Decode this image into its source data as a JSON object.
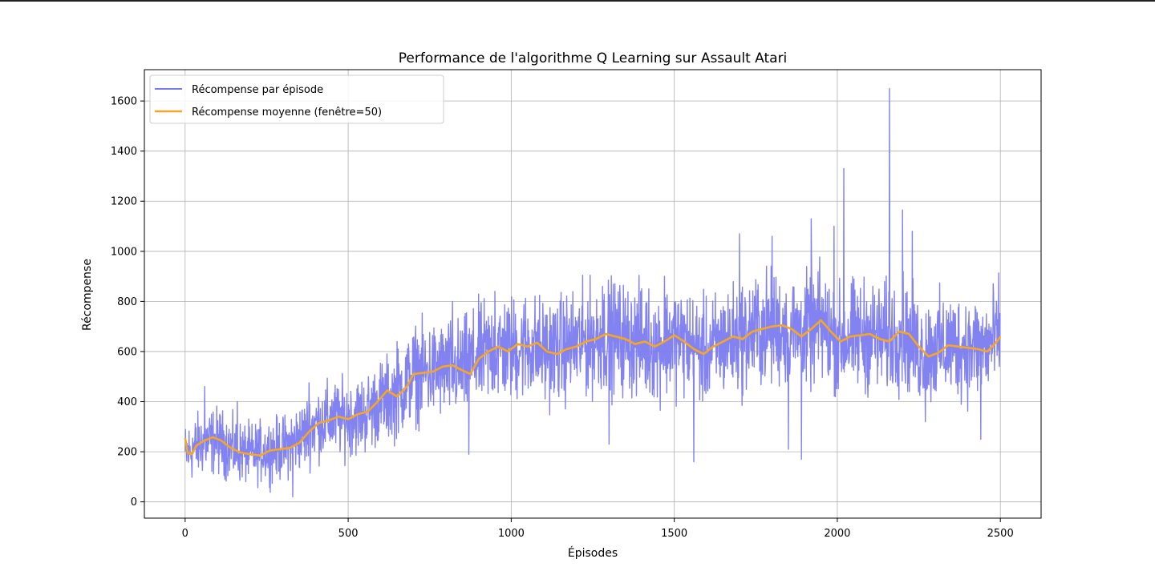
{
  "chart_data": {
    "type": "line",
    "title": "Performance de l'algorithme Q Learning sur Assault Atari",
    "xlabel": "Épisodes",
    "ylabel": "Récompense",
    "xlim": [
      -125,
      2625
    ],
    "ylim": [
      -65,
      1725
    ],
    "xticks": [
      0,
      500,
      1000,
      1500,
      2000,
      2500
    ],
    "yticks": [
      0,
      200,
      400,
      600,
      800,
      1000,
      1200,
      1400,
      1600
    ],
    "grid": true,
    "legend_position": "top-left",
    "series": [
      {
        "name": "Récompense par épisode",
        "color": "#7b7bf0",
        "episodes": 2500,
        "noisy": true,
        "trend": [
          [
            0,
            190
          ],
          [
            50,
            235
          ],
          [
            100,
            245
          ],
          [
            150,
            205
          ],
          [
            200,
            190
          ],
          [
            250,
            205
          ],
          [
            300,
            215
          ],
          [
            350,
            255
          ],
          [
            400,
            310
          ],
          [
            450,
            330
          ],
          [
            500,
            335
          ],
          [
            550,
            350
          ],
          [
            600,
            400
          ],
          [
            650,
            425
          ],
          [
            700,
            510
          ],
          [
            750,
            520
          ],
          [
            800,
            530
          ],
          [
            850,
            530
          ],
          [
            900,
            580
          ],
          [
            950,
            610
          ],
          [
            1000,
            610
          ],
          [
            1050,
            625
          ],
          [
            1100,
            600
          ],
          [
            1150,
            610
          ],
          [
            1200,
            630
          ],
          [
            1250,
            650
          ],
          [
            1300,
            665
          ],
          [
            1350,
            650
          ],
          [
            1400,
            640
          ],
          [
            1450,
            625
          ],
          [
            1500,
            655
          ],
          [
            1550,
            625
          ],
          [
            1600,
            590
          ],
          [
            1650,
            640
          ],
          [
            1700,
            650
          ],
          [
            1750,
            680
          ],
          [
            1800,
            695
          ],
          [
            1850,
            690
          ],
          [
            1900,
            670
          ],
          [
            1950,
            710
          ],
          [
            2000,
            640
          ],
          [
            2050,
            660
          ],
          [
            2100,
            665
          ],
          [
            2150,
            650
          ],
          [
            2200,
            675
          ],
          [
            2250,
            600
          ],
          [
            2300,
            610
          ],
          [
            2350,
            625
          ],
          [
            2400,
            615
          ],
          [
            2450,
            615
          ],
          [
            2500,
            660
          ]
        ],
        "spikes": [
          [
            60,
            460
          ],
          [
            160,
            400
          ],
          [
            330,
            20
          ],
          [
            380,
            475
          ],
          [
            650,
            640
          ],
          [
            820,
            800
          ],
          [
            870,
            190
          ],
          [
            950,
            840
          ],
          [
            1280,
            860
          ],
          [
            1300,
            230
          ],
          [
            1400,
            850
          ],
          [
            1470,
            900
          ],
          [
            1560,
            160
          ],
          [
            1700,
            1070
          ],
          [
            1800,
            1060
          ],
          [
            1850,
            210
          ],
          [
            1890,
            170
          ],
          [
            1920,
            1130
          ],
          [
            1990,
            1100
          ],
          [
            2020,
            1330
          ],
          [
            2160,
            1650
          ],
          [
            2200,
            1165
          ],
          [
            2230,
            1080
          ],
          [
            2270,
            320
          ],
          [
            2440,
            250
          ]
        ]
      },
      {
        "name": "Récompense moyenne (fenêtre=50)",
        "color": "#f5a623",
        "values": [
          [
            0,
            255
          ],
          [
            8,
            195
          ],
          [
            20,
            190
          ],
          [
            35,
            225
          ],
          [
            60,
            245
          ],
          [
            85,
            258
          ],
          [
            110,
            245
          ],
          [
            140,
            215
          ],
          [
            170,
            197
          ],
          [
            200,
            190
          ],
          [
            230,
            185
          ],
          [
            260,
            205
          ],
          [
            290,
            210
          ],
          [
            320,
            215
          ],
          [
            350,
            235
          ],
          [
            380,
            280
          ],
          [
            410,
            315
          ],
          [
            440,
            325
          ],
          [
            470,
            340
          ],
          [
            500,
            330
          ],
          [
            530,
            350
          ],
          [
            560,
            360
          ],
          [
            590,
            400
          ],
          [
            620,
            445
          ],
          [
            650,
            420
          ],
          [
            680,
            460
          ],
          [
            700,
            510
          ],
          [
            730,
            515
          ],
          [
            760,
            520
          ],
          [
            790,
            540
          ],
          [
            820,
            545
          ],
          [
            850,
            525
          ],
          [
            875,
            510
          ],
          [
            900,
            570
          ],
          [
            930,
            600
          ],
          [
            960,
            620
          ],
          [
            990,
            600
          ],
          [
            1020,
            630
          ],
          [
            1050,
            620
          ],
          [
            1080,
            635
          ],
          [
            1110,
            600
          ],
          [
            1140,
            590
          ],
          [
            1170,
            610
          ],
          [
            1200,
            620
          ],
          [
            1230,
            640
          ],
          [
            1260,
            650
          ],
          [
            1290,
            670
          ],
          [
            1320,
            660
          ],
          [
            1350,
            650
          ],
          [
            1380,
            630
          ],
          [
            1410,
            640
          ],
          [
            1440,
            620
          ],
          [
            1470,
            640
          ],
          [
            1500,
            665
          ],
          [
            1530,
            640
          ],
          [
            1560,
            610
          ],
          [
            1590,
            590
          ],
          [
            1620,
            620
          ],
          [
            1650,
            640
          ],
          [
            1680,
            660
          ],
          [
            1710,
            650
          ],
          [
            1740,
            680
          ],
          [
            1770,
            690
          ],
          [
            1800,
            700
          ],
          [
            1830,
            705
          ],
          [
            1860,
            690
          ],
          [
            1890,
            660
          ],
          [
            1920,
            690
          ],
          [
            1950,
            725
          ],
          [
            1980,
            680
          ],
          [
            2010,
            640
          ],
          [
            2040,
            660
          ],
          [
            2070,
            665
          ],
          [
            2100,
            670
          ],
          [
            2130,
            650
          ],
          [
            2160,
            640
          ],
          [
            2190,
            680
          ],
          [
            2220,
            670
          ],
          [
            2250,
            620
          ],
          [
            2280,
            580
          ],
          [
            2310,
            595
          ],
          [
            2340,
            625
          ],
          [
            2370,
            620
          ],
          [
            2400,
            615
          ],
          [
            2430,
            610
          ],
          [
            2460,
            600
          ],
          [
            2490,
            640
          ],
          [
            2500,
            660
          ]
        ]
      }
    ]
  }
}
